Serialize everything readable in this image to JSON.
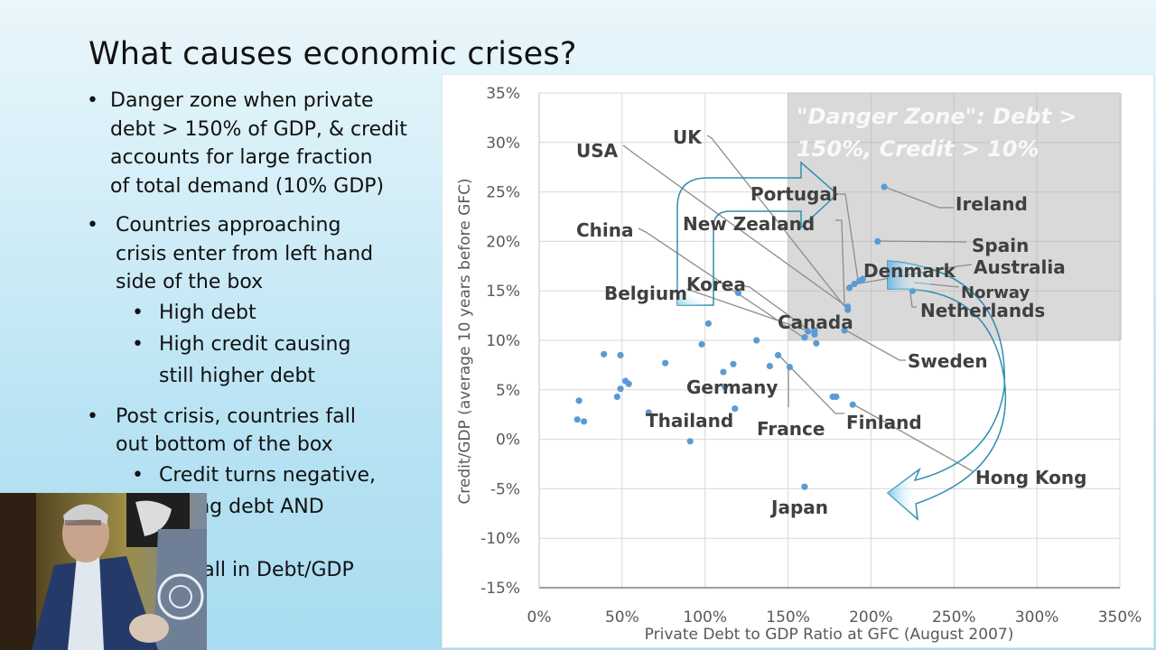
{
  "slide": {
    "title": "What causes economic crises?",
    "bullets": [
      {
        "level": 1,
        "text": [
          "Danger zone when private",
          "debt > 150% of GDP, & credit",
          "accounts for large fraction",
          "of total demand (10% GDP)"
        ]
      },
      {
        "level": 1,
        "text": [
          "Countries approaching",
          "crisis enter from left hand",
          "side of the box"
        ]
      },
      {
        "level": 2,
        "text": [
          "High debt"
        ]
      },
      {
        "level": 2,
        "text": [
          "High credit causing",
          "still higher debt"
        ]
      },
      {
        "level": 1,
        "text": [
          "Post crisis, countries fall",
          "out bottom of the box"
        ]
      },
      {
        "level": 2,
        "text": [
          "Credit turns negative,",
          "reducing debt AND",
          "...",
          "...e fall in Debt/GDP"
        ]
      }
    ],
    "visible_partial_text": [
      "Credit turns negative,",
      "cing debt AND",
      "e fall in Debt/GDP"
    ]
  },
  "webcam": {
    "label": "presenter-video"
  },
  "chart_data": {
    "type": "scatter",
    "title": "",
    "xlabel": "Private Debt to GDP Ratio at GFC (August 2007)",
    "ylabel": "Credit/GDP (average 10 years before GFC)",
    "xlim": [
      0,
      350
    ],
    "ylim": [
      -15,
      35
    ],
    "x_ticks": [
      "0%",
      "50%",
      "100%",
      "150%",
      "200%",
      "250%",
      "300%",
      "350%"
    ],
    "y_ticks": [
      "35%",
      "30%",
      "25%",
      "20%",
      "15%",
      "10%",
      "5%",
      "0%",
      "-5%",
      "-10%",
      "-15%"
    ],
    "grid": true,
    "legend": null,
    "marker_color": "#5b9bd5",
    "danger_zone": {
      "label_line1": "\"Danger Zone\": Debt >",
      "label_line2": "150%, Credit > 10%",
      "x_min": 150,
      "x_max": 350,
      "y_min": 10,
      "y_max": 35,
      "fill": "#d9d9d9"
    },
    "labeled_points": [
      {
        "name": "Ireland",
        "x": 208,
        "y": 25.5
      },
      {
        "name": "Spain",
        "x": 204,
        "y": 20
      },
      {
        "name": "Denmark",
        "x": 193,
        "y": 16
      },
      {
        "name": "Australia",
        "x": 195,
        "y": 16.2
      },
      {
        "name": "Portugal",
        "x": 190,
        "y": 15.7
      },
      {
        "name": "Norway",
        "x": 187,
        "y": 15.3
      },
      {
        "name": "Netherlands",
        "x": 225,
        "y": 15
      },
      {
        "name": "UK",
        "x": 186,
        "y": 13.4
      },
      {
        "name": "New Zealand",
        "x": 186,
        "y": 13.1
      },
      {
        "name": "Sweden",
        "x": 184,
        "y": 11
      },
      {
        "name": "USA",
        "x": 166,
        "y": 10.6
      },
      {
        "name": "Canada",
        "x": 160,
        "y": 10.3
      },
      {
        "name": "Korea",
        "x": 166,
        "y": 11
      },
      {
        "name": "China",
        "x": 162,
        "y": 10.9
      },
      {
        "name": "Belgium",
        "x": 120,
        "y": 14.8
      },
      {
        "name": "Germany",
        "x": 144,
        "y": 8.5
      },
      {
        "name": "France",
        "x": 151,
        "y": 7.3
      },
      {
        "name": "Finland",
        "x": 189,
        "y": 3.5
      },
      {
        "name": "Hong Kong",
        "x": 177,
        "y": 4.3
      },
      {
        "name": "Thailand",
        "x": 66,
        "y": 2.7
      },
      {
        "name": "Japan",
        "x": 160,
        "y": -4.8
      }
    ],
    "unlabeled_points": [
      {
        "x": 39,
        "y": 8.6
      },
      {
        "x": 49,
        "y": 8.5
      },
      {
        "x": 76,
        "y": 7.7
      },
      {
        "x": 98,
        "y": 9.6
      },
      {
        "x": 102,
        "y": 11.7
      },
      {
        "x": 111,
        "y": 6.8
      },
      {
        "x": 117,
        "y": 7.6
      },
      {
        "x": 112,
        "y": 5.3
      },
      {
        "x": 52,
        "y": 5.9
      },
      {
        "x": 54,
        "y": 5.6
      },
      {
        "x": 49,
        "y": 5.1
      },
      {
        "x": 47,
        "y": 4.3
      },
      {
        "x": 24,
        "y": 3.9
      },
      {
        "x": 23,
        "y": 2.0
      },
      {
        "x": 27,
        "y": 1.8
      },
      {
        "x": 118,
        "y": 3.1
      },
      {
        "x": 91,
        "y": -0.2
      },
      {
        "x": 131,
        "y": 10.0
      },
      {
        "x": 139,
        "y": 7.4
      },
      {
        "x": 167,
        "y": 9.7
      },
      {
        "x": 179,
        "y": 4.3
      }
    ],
    "annotations": [
      {
        "type": "bent-arrow",
        "meaning": "countries enter danger zone from left"
      },
      {
        "type": "curved-arrow",
        "meaning": "countries fall out bottom of danger zone post crisis"
      }
    ]
  }
}
